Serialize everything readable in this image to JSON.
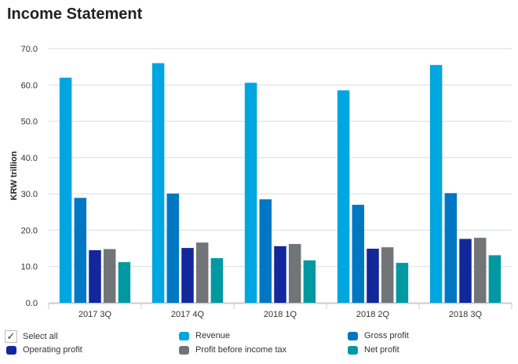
{
  "title": "Income Statement",
  "select_all": {
    "label": "Select all",
    "checked": true
  },
  "chart_data": {
    "type": "bar",
    "title": "Income Statement",
    "xlabel": "",
    "ylabel": "KRW trillion",
    "ylim": [
      0,
      70
    ],
    "yticks": [
      "0.0",
      "10.0",
      "20.0",
      "30.0",
      "40.0",
      "50.0",
      "60.0",
      "70.0"
    ],
    "grid": true,
    "legend_placement": "bottom",
    "categories": [
      "2017 3Q",
      "2017 4Q",
      "2018 1Q",
      "2018 2Q",
      "2018 3Q"
    ],
    "series": [
      {
        "name": "Revenue",
        "color": "#00a6e0",
        "values": [
          62.0,
          66.0,
          60.6,
          58.5,
          65.5
        ]
      },
      {
        "name": "Gross profit",
        "color": "#0077c3",
        "values": [
          28.9,
          30.1,
          28.5,
          27.0,
          30.2
        ]
      },
      {
        "name": "Operating profit",
        "color": "#13279c",
        "values": [
          14.5,
          15.1,
          15.6,
          14.9,
          17.6
        ]
      },
      {
        "name": "Profit before income tax",
        "color": "#727578",
        "values": [
          14.8,
          16.6,
          16.2,
          15.3,
          17.9
        ]
      },
      {
        "name": "Net profit",
        "color": "#0099a2",
        "values": [
          11.2,
          12.3,
          11.7,
          11.0,
          13.1
        ]
      }
    ]
  }
}
